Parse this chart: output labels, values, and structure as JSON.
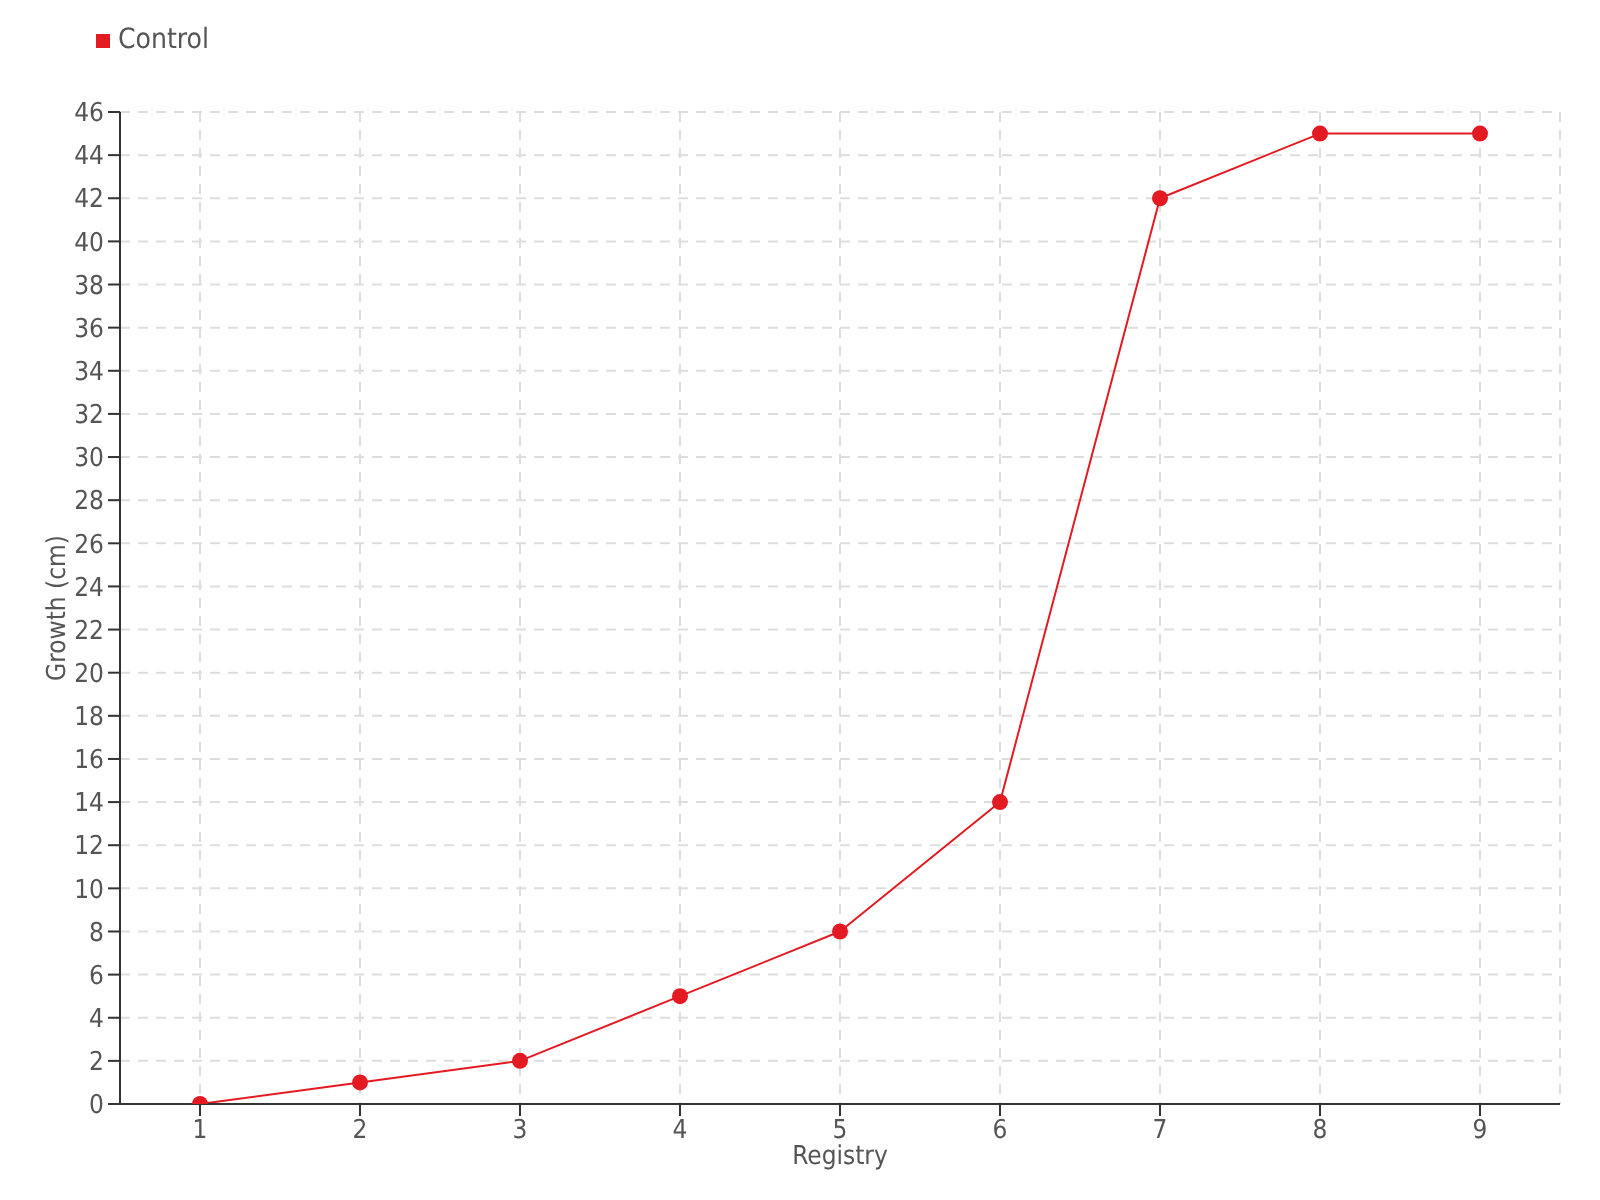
{
  "chart_data": {
    "type": "line",
    "xlabel": "Registry",
    "ylabel": "Growth (cm)",
    "categories": [
      "1",
      "2",
      "3",
      "4",
      "5",
      "6",
      "7",
      "8",
      "9"
    ],
    "series": [
      {
        "name": "Control",
        "color": "#e31a22",
        "values": [
          0,
          1,
          2,
          5,
          8,
          14,
          42,
          45,
          45
        ]
      }
    ],
    "ylim": [
      0,
      46
    ],
    "yticks": [
      0,
      2,
      4,
      6,
      8,
      10,
      12,
      14,
      16,
      18,
      20,
      22,
      24,
      26,
      28,
      30,
      32,
      34,
      36,
      38,
      40,
      42,
      44,
      46
    ],
    "grid": true,
    "legend": "top left",
    "marker": "circle",
    "line_style": "solid"
  }
}
